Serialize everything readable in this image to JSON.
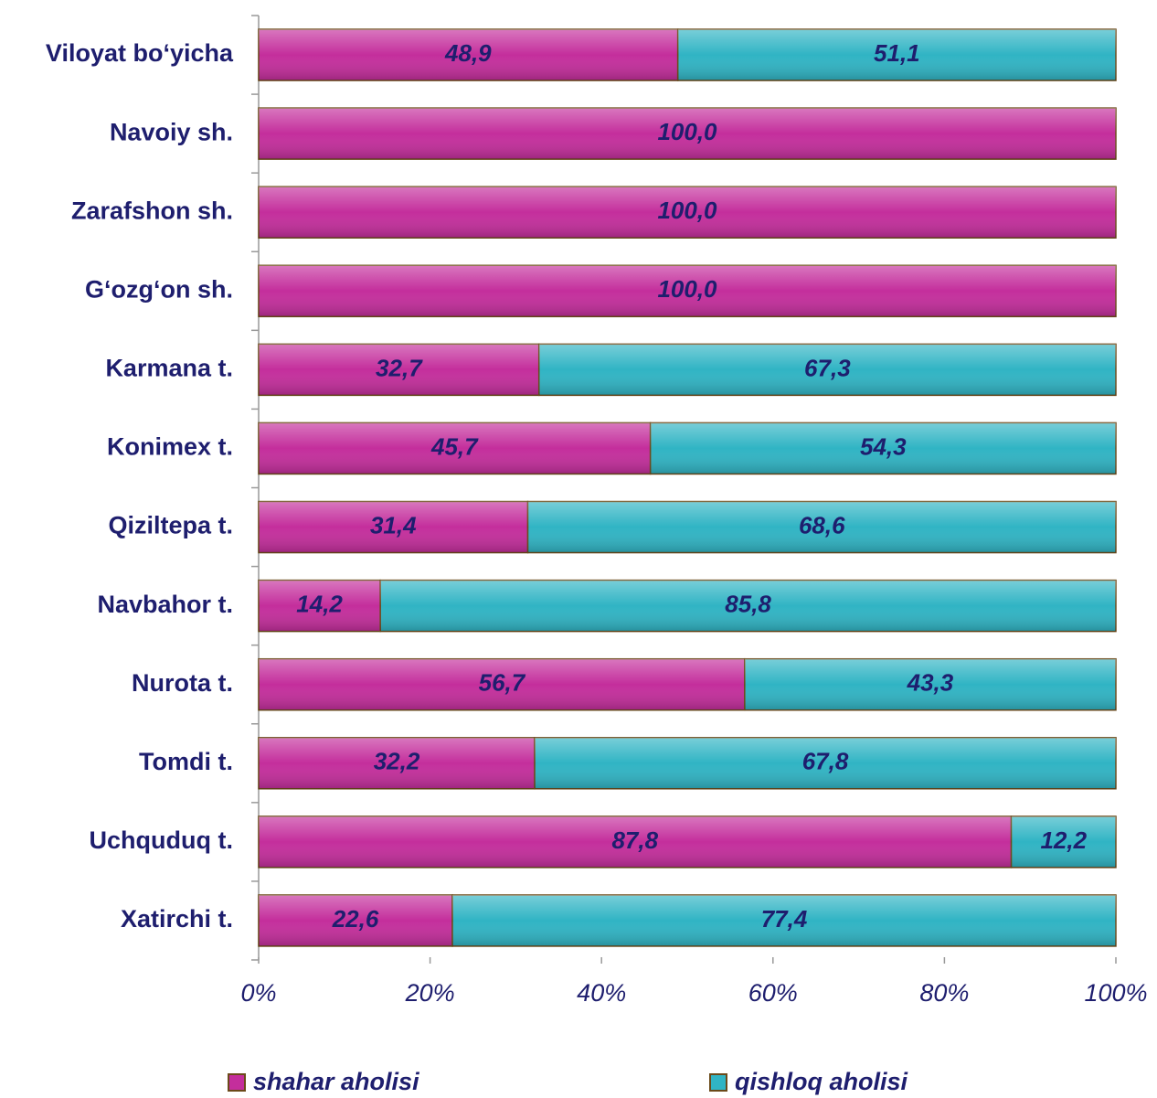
{
  "chart_data": {
    "type": "stacked_bar_horizontal",
    "categories": [
      "Viloyat bo‘yicha",
      "Navoiy sh.",
      "Zarafshon sh.",
      "G‘ozg‘on sh.",
      "Karmana t.",
      "Konimex t.",
      "Qiziltepa t.",
      "Navbahor t.",
      "Nurota t.",
      "Tomdi t.",
      "Uchquduq t.",
      "Xatirchi t."
    ],
    "series": [
      {
        "name": "shahar aholisi",
        "color": "#c42e9c",
        "values": [
          48.9,
          100.0,
          100.0,
          100.0,
          32.7,
          45.7,
          31.4,
          14.2,
          56.7,
          32.2,
          87.8,
          22.6
        ],
        "value_labels": [
          "48,9",
          "100,0",
          "100,0",
          "100,0",
          "32,7",
          "45,7",
          "31,4",
          "14,2",
          "56,7",
          "32,2",
          "87,8",
          "22,6"
        ]
      },
      {
        "name": "qishloq aholisi",
        "color": "#30b4c4",
        "values": [
          51.1,
          null,
          null,
          null,
          67.3,
          54.3,
          68.6,
          85.8,
          43.3,
          67.8,
          12.2,
          77.4
        ],
        "value_labels": [
          "51,1",
          null,
          null,
          null,
          "67,3",
          "54,3",
          "68,6",
          "85,8",
          "43,3",
          "67,8",
          "12,2",
          "77,4"
        ]
      }
    ],
    "xlim": [
      0,
      100
    ],
    "xticks": [
      {
        "value": 0,
        "label": "0%"
      },
      {
        "value": 20,
        "label": "20%"
      },
      {
        "value": 40,
        "label": "40%"
      },
      {
        "value": 60,
        "label": "60%"
      },
      {
        "value": 80,
        "label": "80%"
      },
      {
        "value": 100,
        "label": "100%"
      }
    ],
    "legend": "bottom"
  }
}
